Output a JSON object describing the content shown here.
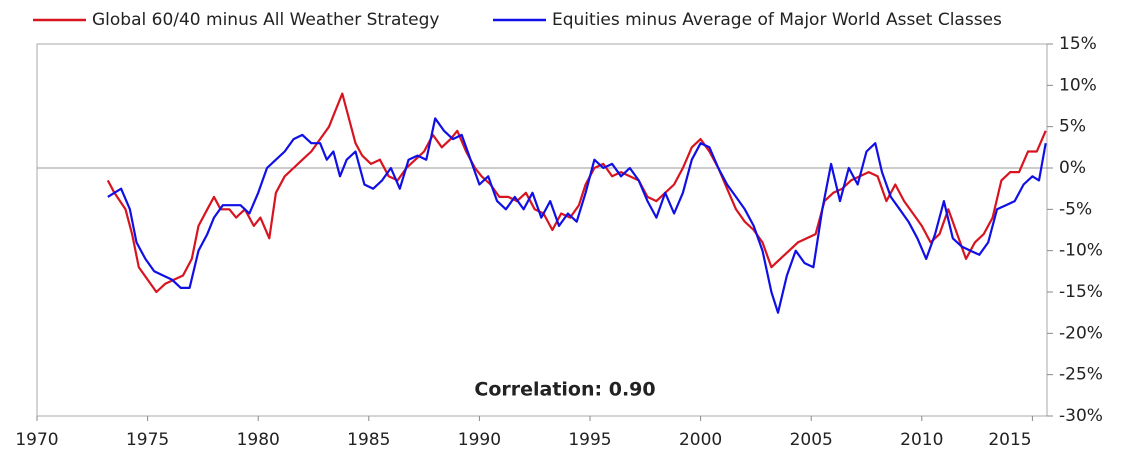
{
  "chart_data": {
    "type": "line",
    "annotation": "Correlation:  0.90",
    "xlim": [
      1970,
      2015.66
    ],
    "xticks": [
      1970,
      1975,
      1980,
      1985,
      1990,
      1995,
      2000,
      2005,
      2010,
      2015
    ],
    "ylim": [
      -30,
      15
    ],
    "yticks": [
      {
        "value": 15,
        "label": "15%"
      },
      {
        "value": 10,
        "label": "10%"
      },
      {
        "value": 5,
        "label": "5%"
      },
      {
        "value": 0,
        "label": "0%"
      },
      {
        "value": -5,
        "label": "-5%"
      },
      {
        "value": -10,
        "label": "-10%"
      },
      {
        "value": -15,
        "label": "-15%"
      },
      {
        "value": -20,
        "label": "-20%"
      },
      {
        "value": -25,
        "label": "-25%"
      },
      {
        "value": -30,
        "label": "-30%"
      }
    ],
    "series": [
      {
        "name": "Global 60/40 minus All Weather Strategy",
        "color": "#d7141f",
        "x": [
          1973.2,
          1973.5,
          1974.0,
          1974.3,
          1974.6,
          1975.0,
          1975.4,
          1975.8,
          1976.2,
          1976.6,
          1977.0,
          1977.3,
          1977.7,
          1978.0,
          1978.3,
          1978.7,
          1979.0,
          1979.4,
          1979.8,
          1980.1,
          1980.5,
          1980.8,
          1981.2,
          1981.6,
          1982.0,
          1982.4,
          1982.8,
          1983.2,
          1983.5,
          1983.8,
          1984.1,
          1984.4,
          1984.7,
          1985.1,
          1985.5,
          1985.9,
          1986.3,
          1986.7,
          1987.1,
          1987.5,
          1987.9,
          1988.3,
          1988.7,
          1989.0,
          1989.4,
          1989.8,
          1990.1,
          1990.5,
          1990.9,
          1991.3,
          1991.7,
          1992.1,
          1992.5,
          1992.9,
          1993.3,
          1993.7,
          1994.1,
          1994.5,
          1994.8,
          1995.2,
          1995.6,
          1996.0,
          1996.4,
          1996.8,
          1997.2,
          1997.6,
          1998.0,
          1998.4,
          1998.8,
          1999.2,
          1999.6,
          2000.0,
          2000.4,
          2000.8,
          2001.2,
          2001.6,
          2002.0,
          2002.4,
          2002.8,
          2003.2,
          2003.6,
          2004.0,
          2004.4,
          2004.8,
          2005.2,
          2005.6,
          2006.0,
          2006.4,
          2006.8,
          2007.2,
          2007.6,
          2008.0,
          2008.4,
          2008.8,
          2009.2,
          2009.6,
          2010.0,
          2010.4,
          2010.8,
          2011.2,
          2011.6,
          2012.0,
          2012.4,
          2012.8,
          2013.2,
          2013.6,
          2014.0,
          2014.4,
          2014.8,
          2015.2,
          2015.6
        ],
        "values": [
          -1.5,
          -3,
          -5,
          -8,
          -12,
          -13.5,
          -15,
          -14,
          -13.5,
          -13,
          -11,
          -7,
          -5,
          -3.5,
          -5,
          -5,
          -6,
          -5,
          -7,
          -6,
          -8.5,
          -3,
          -1,
          0,
          1,
          2,
          3.5,
          5,
          7,
          9,
          6,
          3,
          1.5,
          0.5,
          1,
          -1,
          -1.5,
          0,
          1,
          2,
          4,
          2.5,
          3.5,
          4.5,
          2,
          0,
          -1,
          -2,
          -3.5,
          -3.5,
          -4,
          -3,
          -5,
          -5.5,
          -7.5,
          -5.5,
          -6,
          -4.5,
          -2,
          0,
          0.5,
          -1,
          -0.5,
          -1,
          -1.5,
          -3.5,
          -4,
          -3,
          -2,
          0,
          2.5,
          3.5,
          2,
          0,
          -2.5,
          -5,
          -6.5,
          -7.5,
          -9,
          -12,
          -11,
          -10,
          -9,
          -8.5,
          -8,
          -4,
          -3,
          -2.5,
          -1.5,
          -1,
          -0.5,
          -1,
          -4,
          -2,
          -4,
          -5.5,
          -7,
          -9,
          -8,
          -5,
          -8,
          -11,
          -9,
          -8,
          -6,
          -1.5,
          -0.5,
          -0.5,
          2,
          2,
          4.5
        ]
      },
      {
        "name": "Equities minus Average of Major World Asset Classes",
        "color": "#1010e6",
        "x": [
          1973.2,
          1973.5,
          1973.8,
          1974.2,
          1974.5,
          1974.9,
          1975.3,
          1975.7,
          1976.1,
          1976.5,
          1976.9,
          1977.3,
          1977.7,
          1978.0,
          1978.4,
          1978.8,
          1979.2,
          1979.6,
          1980.0,
          1980.4,
          1980.8,
          1981.2,
          1981.6,
          1982.0,
          1982.4,
          1982.8,
          1983.1,
          1983.4,
          1983.7,
          1984.0,
          1984.4,
          1984.8,
          1985.2,
          1985.6,
          1986.0,
          1986.4,
          1986.8,
          1987.2,
          1987.6,
          1988.0,
          1988.4,
          1988.8,
          1989.2,
          1989.6,
          1990.0,
          1990.4,
          1990.8,
          1991.2,
          1991.6,
          1992.0,
          1992.4,
          1992.8,
          1993.2,
          1993.6,
          1994.0,
          1994.4,
          1994.8,
          1995.2,
          1995.6,
          1996.0,
          1996.4,
          1996.8,
          1997.2,
          1997.6,
          1998.0,
          1998.4,
          1998.8,
          1999.2,
          1999.6,
          2000.0,
          2000.4,
          2000.8,
          2001.2,
          2001.6,
          2002.0,
          2002.4,
          2002.8,
          2003.2,
          2003.5,
          2003.9,
          2004.3,
          2004.7,
          2005.1,
          2005.5,
          2005.9,
          2006.3,
          2006.7,
          2007.1,
          2007.5,
          2007.9,
          2008.2,
          2008.6,
          2009.0,
          2009.4,
          2009.8,
          2010.2,
          2010.6,
          2011.0,
          2011.4,
          2011.8,
          2012.2,
          2012.6,
          2013.0,
          2013.4,
          2013.8,
          2014.2,
          2014.6,
          2015.0,
          2015.3,
          2015.6
        ],
        "values": [
          -3.5,
          -3,
          -2.5,
          -5,
          -9,
          -11,
          -12.5,
          -13,
          -13.5,
          -14.5,
          -14.5,
          -10,
          -8,
          -6,
          -4.5,
          -4.5,
          -4.5,
          -5.5,
          -3,
          0,
          1,
          2,
          3.5,
          4,
          3,
          3,
          1,
          2,
          -1,
          1,
          2,
          -2,
          -2.5,
          -1.5,
          0,
          -2.5,
          1,
          1.5,
          1,
          6,
          4.5,
          3.5,
          4,
          1,
          -2,
          -1,
          -4,
          -5,
          -3.5,
          -5,
          -3,
          -6,
          -4,
          -7,
          -5.5,
          -6.5,
          -3,
          1,
          0,
          0.5,
          -1,
          0,
          -1.5,
          -4,
          -6,
          -3,
          -5.5,
          -3,
          1,
          3,
          2.5,
          0,
          -2,
          -3.5,
          -5,
          -7,
          -10,
          -15,
          -17.5,
          -13,
          -10,
          -11.5,
          -12,
          -5,
          0.5,
          -4,
          0,
          -2,
          2,
          3,
          -0.5,
          -3.5,
          -5,
          -6.5,
          -8.5,
          -11,
          -8,
          -4,
          -8.5,
          -9.5,
          -10,
          -10.5,
          -9,
          -5,
          -4.5,
          -4,
          -2,
          -1,
          -1.5,
          3
        ]
      }
    ]
  }
}
